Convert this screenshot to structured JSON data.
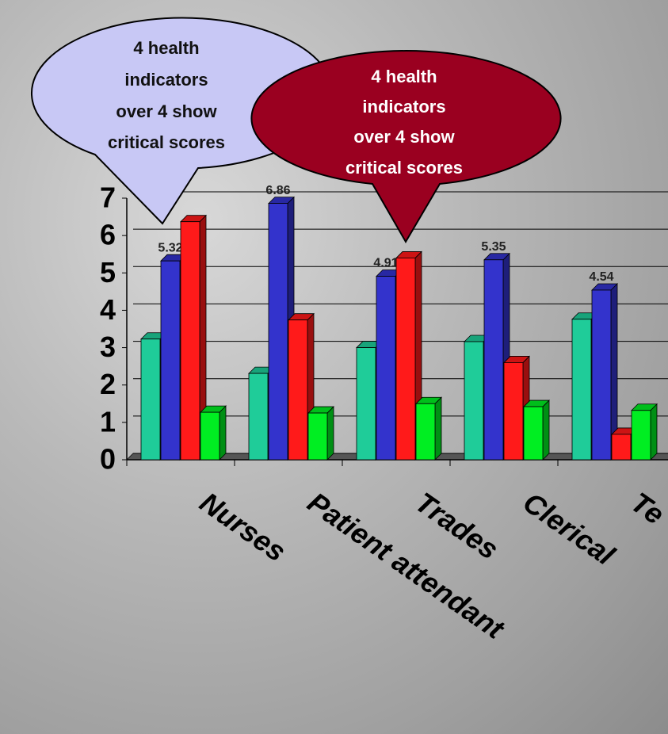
{
  "chart_data": {
    "type": "bar",
    "categories": [
      "Nurses",
      "Patient attendant",
      "Trades",
      "Clerical",
      "Te"
    ],
    "series": [
      {
        "color": "#1fcc99",
        "values": [
          3.23,
          2.31,
          3.0,
          3.16,
          3.76
        ]
      },
      {
        "color": "#3333cc",
        "values": [
          5.32,
          6.86,
          4.91,
          5.35,
          4.54
        ],
        "data_labels": true
      },
      {
        "color": "#ff1a1a",
        "values": [
          6.37,
          3.74,
          5.4,
          2.6,
          0.68
        ]
      },
      {
        "color": "#00ee22",
        "values": [
          1.27,
          1.25,
          1.5,
          1.42,
          1.32
        ]
      }
    ],
    "ylim": [
      0,
      7
    ],
    "yticks": [
      0,
      1,
      2,
      3,
      4,
      5,
      6,
      7
    ],
    "grid": true
  },
  "callouts": [
    {
      "lines": [
        "4 health",
        "indicators",
        "over 4 show",
        "critical scores"
      ]
    },
    {
      "lines": [
        "4 health",
        "indicators",
        "over 4 show",
        "critical scores"
      ]
    }
  ]
}
